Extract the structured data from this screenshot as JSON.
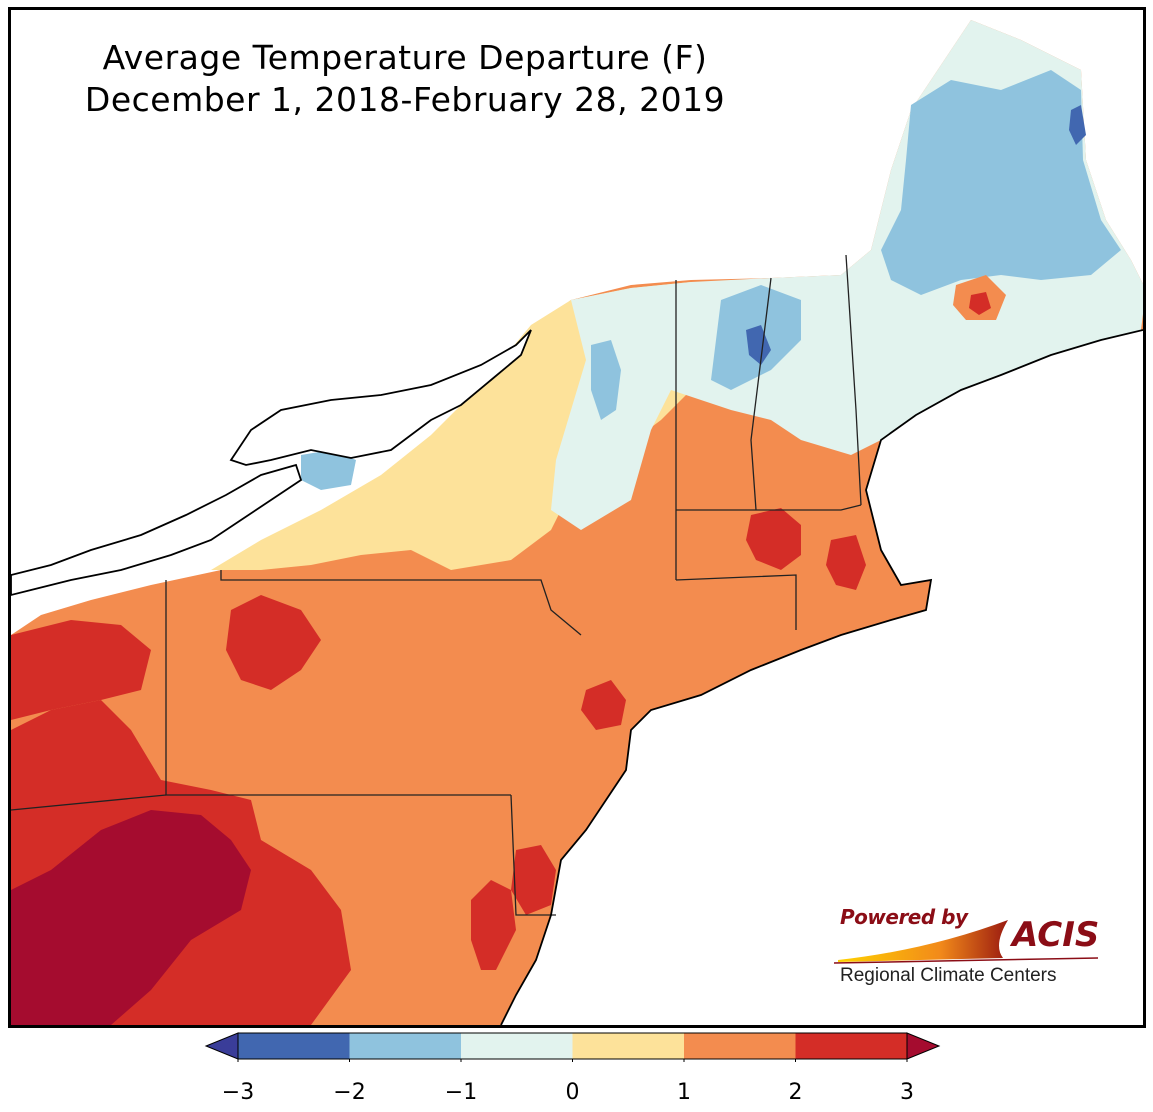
{
  "title": {
    "line1": "Average Temperature Departure (F)",
    "line2": "December 1, 2018-February 28, 2019"
  },
  "logo": {
    "powered_by": "Powered by",
    "name": "ACIS",
    "subtitle": "Regional Climate Centers"
  },
  "colorbar": {
    "bins": [
      {
        "from": -3,
        "to": -2,
        "color": "#4167b0"
      },
      {
        "from": -2,
        "to": -1,
        "color": "#8fc3de"
      },
      {
        "from": -1,
        "to": 0,
        "color": "#e2f3ee"
      },
      {
        "from": 0,
        "to": 1,
        "color": "#fde29a"
      },
      {
        "from": 1,
        "to": 2,
        "color": "#f38c4f"
      },
      {
        "from": 2,
        "to": 3,
        "color": "#d42d27"
      }
    ],
    "under_color": "#3a3d99",
    "over_color": "#a50c2f",
    "ticks": [
      "−3",
      "−2",
      "−1",
      "0",
      "1",
      "2",
      "3"
    ]
  },
  "colors": {
    "ocean_land_outside": "#ffffff",
    "dark_red": "#a50c2f",
    "red": "#d42d27",
    "orange": "#f38c4f",
    "yellow": "#fde29a",
    "pale": "#e2f3ee",
    "light_blue": "#8fc3de",
    "blue": "#4167b0"
  }
}
